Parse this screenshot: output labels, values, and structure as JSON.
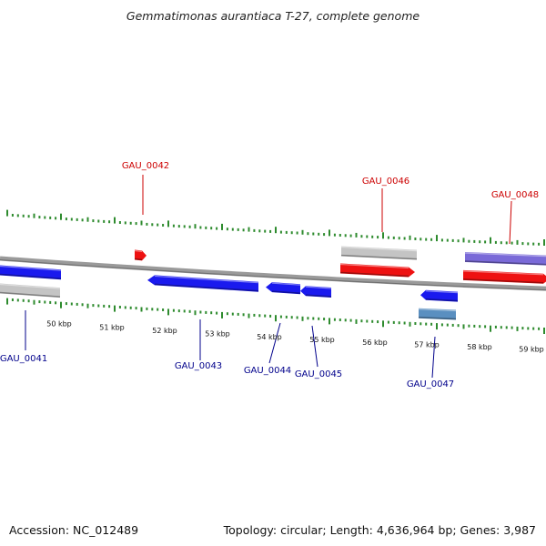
{
  "title": "Gemmatimonas aurantiaca T-27, complete genome",
  "footer": {
    "accession": "Accession: NC_012489",
    "summary": "Topology: circular; Length: 4,636,964 bp; Genes: 3,987"
  },
  "colors": {
    "backbone": "#8c8c8c",
    "tick": "#2e8b2e",
    "forward_label": "#cc0000",
    "reverse_label": "#00008b",
    "blue_gene": "#1a1aee",
    "red_gene": "#ee1111",
    "grey_gene": "#c4c4c4",
    "purple_gene": "#7a6ad8",
    "steel_gene": "#5a8fc0"
  },
  "ruler": {
    "unit": "kbp",
    "labels": [
      "50 kbp",
      "51 kbp",
      "52 kbp",
      "53 kbp",
      "54 kbp",
      "55 kbp",
      "56 kbp",
      "57 kbp",
      "58 kbp",
      "59 kbp"
    ]
  },
  "genes": [
    {
      "name": "GAU_0041",
      "strand": "reverse",
      "labeled": true
    },
    {
      "name": "GAU_0042",
      "strand": "forward",
      "labeled": true
    },
    {
      "name": "GAU_0043",
      "strand": "reverse",
      "labeled": true
    },
    {
      "name": "GAU_0044",
      "strand": "reverse",
      "labeled": true
    },
    {
      "name": "GAU_0045",
      "strand": "reverse",
      "labeled": true
    },
    {
      "name": "GAU_0046",
      "strand": "forward",
      "labeled": true
    },
    {
      "name": "GAU_0047",
      "strand": "reverse",
      "labeled": true
    },
    {
      "name": "GAU_0048",
      "strand": "forward",
      "labeled": true
    }
  ]
}
